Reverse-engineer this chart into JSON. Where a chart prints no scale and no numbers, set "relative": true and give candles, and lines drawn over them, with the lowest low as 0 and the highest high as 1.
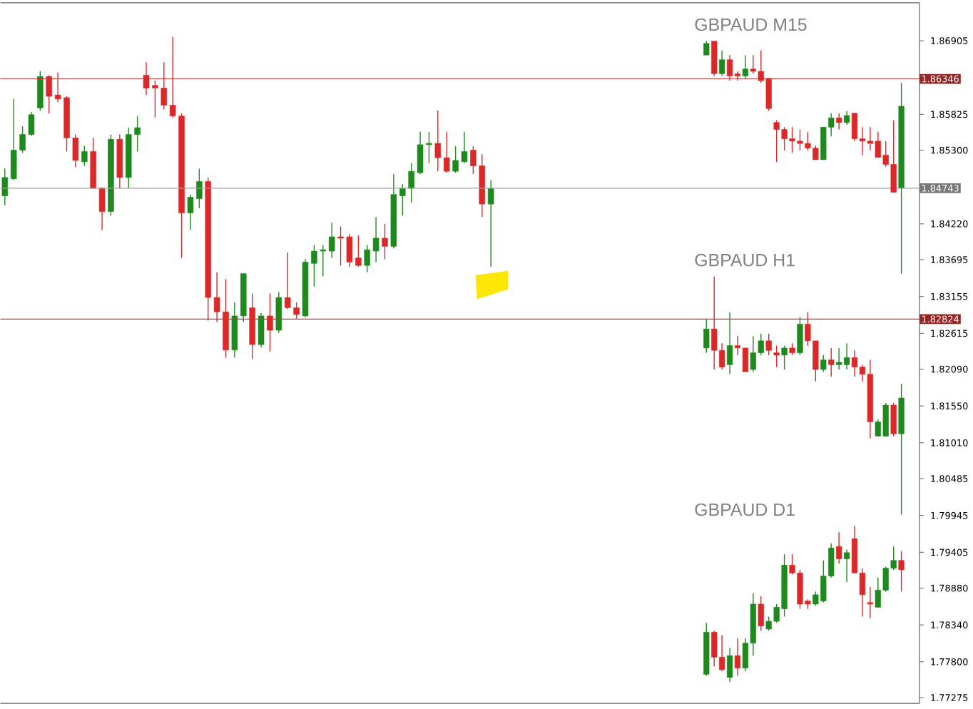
{
  "chart_data": [
    {
      "type": "candlestick",
      "categories": [
        null,
        null,
        null,
        null,
        null,
        null,
        null,
        null,
        null,
        null,
        null,
        null,
        null,
        null,
        null,
        null,
        null,
        null,
        null,
        null,
        null,
        null,
        null,
        null,
        null,
        null,
        null,
        null,
        null,
        null,
        null,
        null,
        null,
        null,
        null,
        null,
        null,
        null,
        null,
        null,
        null,
        null,
        null,
        null,
        null,
        null,
        null,
        null,
        null,
        null,
        null,
        null,
        null,
        null,
        null,
        null,
        null,
        null,
        null,
        null,
        null,
        null,
        null,
        null,
        null,
        null,
        null,
        null,
        null,
        null,
        null,
        null,
        null,
        null,
        null,
        null,
        null,
        null,
        null,
        null,
        null,
        null,
        null,
        null,
        null,
        null,
        null,
        null,
        null,
        null,
        null,
        null,
        null,
        null,
        null,
        null,
        null,
        null,
        null,
        null,
        null,
        null,
        null,
        null
      ],
      "ohlc": [
        [
          1.8463,
          1.8503,
          1.8449,
          1.849
        ],
        [
          1.8488,
          1.8605,
          1.8486,
          1.853
        ],
        [
          1.853,
          1.8565,
          1.8526,
          1.8553
        ],
        [
          1.8553,
          1.8586,
          1.8551,
          1.8582
        ],
        [
          1.8592,
          1.8646,
          1.8588,
          1.8638
        ],
        [
          1.8638,
          1.864,
          1.8584,
          1.8609
        ],
        [
          1.8611,
          1.8644,
          1.86,
          1.8605
        ],
        [
          1.8607,
          1.8609,
          1.8528,
          1.8548
        ],
        [
          1.8548,
          1.8553,
          1.8505,
          1.8515
        ],
        [
          1.8513,
          1.8536,
          1.8507,
          1.8528
        ],
        [
          1.8528,
          1.8548,
          1.8474,
          1.8474
        ],
        [
          1.8474,
          1.8476,
          1.8413,
          1.844
        ],
        [
          1.844,
          1.8553,
          1.8434,
          1.8546
        ],
        [
          1.8546,
          1.8553,
          1.8474,
          1.849
        ],
        [
          1.849,
          1.8563,
          1.8474,
          1.8553
        ],
        [
          1.8553,
          1.858,
          1.8528,
          1.8563
        ],
        [
          1.864,
          1.8659,
          1.8611,
          1.8621
        ],
        [
          1.8625,
          1.8632,
          1.8578,
          1.8621
        ],
        [
          1.8621,
          1.8659,
          1.859,
          1.8596
        ],
        [
          1.8596,
          1.8696,
          1.8578,
          1.858
        ],
        [
          1.858,
          1.8584,
          1.8372,
          1.8438
        ],
        [
          1.8438,
          1.8465,
          1.8413,
          1.8461
        ],
        [
          1.8459,
          1.8503,
          1.8445,
          1.8484
        ],
        [
          1.8484,
          1.849,
          1.828,
          1.8314
        ],
        [
          1.8314,
          1.8351,
          1.8278,
          1.8293
        ],
        [
          1.8293,
          1.8341,
          1.8226,
          1.8237
        ],
        [
          1.8237,
          1.8307,
          1.8226,
          1.8287
        ],
        [
          1.8287,
          1.8349,
          1.8278,
          1.8349
        ],
        [
          1.8299,
          1.832,
          1.8224,
          1.8245
        ],
        [
          1.8245,
          1.8291,
          1.8241,
          1.8287
        ],
        [
          1.8287,
          1.832,
          1.8235,
          1.8266
        ],
        [
          1.8266,
          1.8322,
          1.8262,
          1.8314
        ],
        [
          1.8314,
          1.838,
          1.8297,
          1.8299
        ],
        [
          1.8299,
          1.8307,
          1.8283,
          1.8289
        ],
        [
          1.8287,
          1.837,
          1.8285,
          1.8366
        ],
        [
          1.8364,
          1.8391,
          1.833,
          1.8382
        ],
        [
          1.8382,
          1.8391,
          1.8345,
          1.8384
        ],
        [
          1.8382,
          1.8424,
          1.8372,
          1.8403
        ],
        [
          1.8403,
          1.8418,
          1.8361,
          1.8401
        ],
        [
          1.8403,
          1.8407,
          1.8359,
          1.8366
        ],
        [
          1.8372,
          1.8405,
          1.8359,
          1.8361
        ],
        [
          1.8361,
          1.8391,
          1.8351,
          1.8384
        ],
        [
          1.8382,
          1.8432,
          1.8366,
          1.8401
        ],
        [
          1.8401,
          1.8422,
          1.837,
          1.8389
        ],
        [
          1.8389,
          1.8495,
          1.8386,
          1.8465
        ],
        [
          1.8463,
          1.848,
          1.8434,
          1.8474
        ],
        [
          1.8474,
          1.8511,
          1.8453,
          1.8499
        ],
        [
          1.8497,
          1.8557,
          1.8495,
          1.8538
        ],
        [
          1.8538,
          1.8557,
          1.8511,
          1.854
        ],
        [
          1.854,
          1.8588,
          1.8499,
          1.8519
        ],
        [
          1.8519,
          1.8557,
          1.8497,
          1.8499
        ],
        [
          1.8499,
          1.8536,
          1.8497,
          1.8515
        ],
        [
          1.8513,
          1.8557,
          1.8511,
          1.8528
        ],
        [
          1.853,
          1.8536,
          1.8495,
          1.8507
        ],
        [
          1.8507,
          1.8524,
          1.8432,
          1.8451
        ],
        [
          1.8451,
          1.8486,
          1.8359,
          1.8474
        ],
        null,
        null,
        null,
        null,
        null,
        null,
        null,
        null,
        null,
        null,
        null,
        null,
        null,
        null,
        null,
        null,
        null,
        null,
        null,
        null,
        null,
        null,
        null,
        null,
        null,
        null,
        null,
        null,
        null,
        null,
        null,
        null,
        null,
        null,
        null,
        null,
        null,
        null,
        null,
        null,
        null,
        null,
        null,
        null,
        null,
        null,
        null,
        null
      ],
      "ylim": [
        1.7719,
        1.8746
      ],
      "yticks": [
        {
          "value": 1.86905,
          "label": "1.86905"
        },
        {
          "value": 1.85825,
          "label": "1.85825"
        },
        {
          "value": 1.853,
          "label": "1.85300"
        },
        {
          "value": 1.8422,
          "label": "1.84220"
        },
        {
          "value": 1.83695,
          "label": "1.83695"
        },
        {
          "value": 1.83155,
          "label": "1.83155"
        },
        {
          "value": 1.82615,
          "label": "1.82615"
        },
        {
          "value": 1.8209,
          "label": "1.82090"
        },
        {
          "value": 1.8155,
          "label": "1.81550"
        },
        {
          "value": 1.8101,
          "label": "1.81010"
        },
        {
          "value": 1.80485,
          "label": "1.80485"
        },
        {
          "value": 1.79945,
          "label": "1.79945"
        },
        {
          "value": 1.79405,
          "label": "1.79405"
        },
        {
          "value": 1.7888,
          "label": "1.78880"
        },
        {
          "value": 1.7834,
          "label": "1.78340"
        },
        {
          "value": 1.778,
          "label": "1.77800"
        },
        {
          "value": 1.77275,
          "label": "1.77275"
        }
      ],
      "ref_lines": [
        {
          "axis": "y",
          "value": 1.86346,
          "label": "1.86346",
          "color": "#c83232"
        },
        {
          "axis": "y",
          "value": 1.84743,
          "label": "1.84743",
          "color": "#a0a0a0"
        },
        {
          "axis": "y",
          "value": 1.82824,
          "label": "1.82824",
          "color": "#c83232"
        }
      ],
      "tick_labels": "y"
    },
    {
      "type": "candlestick",
      "title": "GBPAUD M15",
      "relative": true,
      "tick_labels": false,
      "categories": [
        null,
        null,
        null,
        null,
        null,
        null,
        null,
        null,
        null,
        null,
        null,
        null,
        null,
        null,
        null,
        null,
        null,
        null,
        null,
        null,
        null,
        null,
        null,
        null,
        null,
        null
      ],
      "ohlc": [
        [
          0.94,
          1.0,
          0.94,
          0.99
        ],
        [
          1.0,
          1.0,
          0.85,
          0.86
        ],
        [
          0.86,
          0.96,
          0.85,
          0.92
        ],
        [
          0.92,
          0.94,
          0.83,
          0.85
        ],
        [
          0.86,
          0.87,
          0.83,
          0.85
        ],
        [
          0.85,
          0.94,
          0.84,
          0.88
        ],
        [
          0.88,
          0.94,
          0.86,
          0.87
        ],
        [
          0.87,
          0.96,
          0.82,
          0.83
        ],
        [
          0.84,
          0.84,
          0.7,
          0.71
        ],
        [
          0.65,
          0.66,
          0.48,
          0.62
        ],
        [
          0.62,
          0.63,
          0.53,
          0.58
        ],
        [
          0.58,
          0.63,
          0.52,
          0.57
        ],
        [
          0.57,
          0.62,
          0.53,
          0.56
        ],
        [
          0.56,
          0.61,
          0.53,
          0.54
        ],
        [
          0.54,
          0.55,
          0.49,
          0.49
        ],
        [
          0.49,
          0.63,
          0.49,
          0.63
        ],
        [
          0.63,
          0.69,
          0.59,
          0.67
        ],
        [
          0.67,
          0.69,
          0.62,
          0.65
        ],
        [
          0.65,
          0.7,
          0.64,
          0.68
        ],
        [
          0.69,
          0.69,
          0.57,
          0.58
        ],
        [
          0.58,
          0.63,
          0.51,
          0.57
        ],
        [
          0.57,
          0.63,
          0.53,
          0.56
        ],
        [
          0.57,
          0.61,
          0.5,
          0.5
        ],
        [
          0.51,
          0.57,
          0.46,
          0.47
        ],
        [
          0.47,
          0.66,
          0.35,
          0.35
        ],
        [
          0.37,
          0.82,
          0,
          0.72
        ]
      ]
    },
    {
      "type": "candlestick",
      "title": "GBPAUD H1",
      "relative": true,
      "tick_labels": false,
      "categories": [
        null,
        null,
        null,
        null,
        null,
        null,
        null,
        null,
        null,
        null,
        null,
        null,
        null,
        null,
        null,
        null,
        null,
        null,
        null,
        null,
        null,
        null,
        null,
        null,
        null,
        null
      ],
      "ohlc": [
        [
          0.7,
          0.82,
          0.68,
          0.78
        ],
        [
          0.78,
          1.0,
          0.61,
          0.69
        ],
        [
          0.69,
          0.72,
          0.61,
          0.62
        ],
        [
          0.63,
          0.85,
          0.59,
          0.71
        ],
        [
          0.71,
          0.75,
          0.67,
          0.7
        ],
        [
          0.7,
          0.7,
          0.6,
          0.6
        ],
        [
          0.61,
          0.75,
          0.6,
          0.68
        ],
        [
          0.68,
          0.76,
          0.67,
          0.73
        ],
        [
          0.73,
          0.76,
          0.67,
          0.69
        ],
        [
          0.68,
          0.71,
          0.62,
          0.67
        ],
        [
          0.67,
          0.71,
          0.61,
          0.7
        ],
        [
          0.7,
          0.72,
          0.67,
          0.68
        ],
        [
          0.68,
          0.83,
          0.67,
          0.8
        ],
        [
          0.8,
          0.85,
          0.71,
          0.73
        ],
        [
          0.73,
          0.73,
          0.56,
          0.61
        ],
        [
          0.61,
          0.67,
          0.6,
          0.65
        ],
        [
          0.65,
          0.7,
          0.58,
          0.63
        ],
        [
          0.63,
          0.7,
          0.61,
          0.64
        ],
        [
          0.63,
          0.72,
          0.61,
          0.66
        ],
        [
          0.66,
          0.69,
          0.58,
          0.62
        ],
        [
          0.62,
          0.63,
          0.56,
          0.59
        ],
        [
          0.59,
          0.65,
          0.32,
          0.39
        ],
        [
          0.33,
          0.4,
          0.33,
          0.39
        ],
        [
          0.33,
          0.47,
          0.33,
          0.46
        ],
        [
          0.46,
          0.47,
          0.33,
          0.34
        ],
        [
          0.34,
          0.55,
          0,
          0.49
        ]
      ]
    },
    {
      "type": "candlestick",
      "title": "GBPAUD D1",
      "relative": true,
      "tick_labels": false,
      "categories": [
        null,
        null,
        null,
        null,
        null,
        null,
        null,
        null,
        null,
        null,
        null,
        null,
        null,
        null,
        null,
        null,
        null,
        null,
        null,
        null,
        null,
        null,
        null,
        null,
        null,
        null
      ],
      "ohlc": [
        [
          0.05,
          0.38,
          0.04,
          0.32
        ],
        [
          0.32,
          0.33,
          0.1,
          0.16
        ],
        [
          0.16,
          0.3,
          0.07,
          0.08
        ],
        [
          0.03,
          0.22,
          0,
          0.17
        ],
        [
          0.17,
          0.28,
          0.04,
          0.09
        ],
        [
          0.09,
          0.28,
          0.07,
          0.25
        ],
        [
          0.25,
          0.57,
          0.17,
          0.5
        ],
        [
          0.5,
          0.55,
          0.33,
          0.36
        ],
        [
          0.34,
          0.42,
          0.33,
          0.39
        ],
        [
          0.39,
          0.5,
          0.38,
          0.48
        ],
        [
          0.47,
          0.82,
          0.42,
          0.75
        ],
        [
          0.75,
          0.82,
          0.69,
          0.7
        ],
        [
          0.7,
          0.72,
          0.47,
          0.5
        ],
        [
          0.52,
          0.53,
          0.47,
          0.5
        ],
        [
          0.5,
          0.58,
          0.49,
          0.56
        ],
        [
          0.52,
          0.78,
          0.51,
          0.68
        ],
        [
          0.68,
          0.89,
          0.67,
          0.86
        ],
        [
          0.87,
          0.96,
          0.76,
          0.79
        ],
        [
          0.79,
          0.85,
          0.64,
          0.83
        ],
        [
          0.92,
          1.0,
          0.7,
          0.7
        ],
        [
          0.7,
          0.73,
          0.42,
          0.56
        ],
        [
          0.51,
          0.61,
          0.41,
          0.5
        ],
        [
          0.48,
          0.67,
          0.48,
          0.59
        ],
        [
          0.59,
          0.74,
          0.58,
          0.73
        ],
        [
          0.73,
          0.87,
          0.72,
          0.78
        ],
        [
          0.78,
          0.84,
          0.58,
          0.72
        ]
      ]
    }
  ]
}
